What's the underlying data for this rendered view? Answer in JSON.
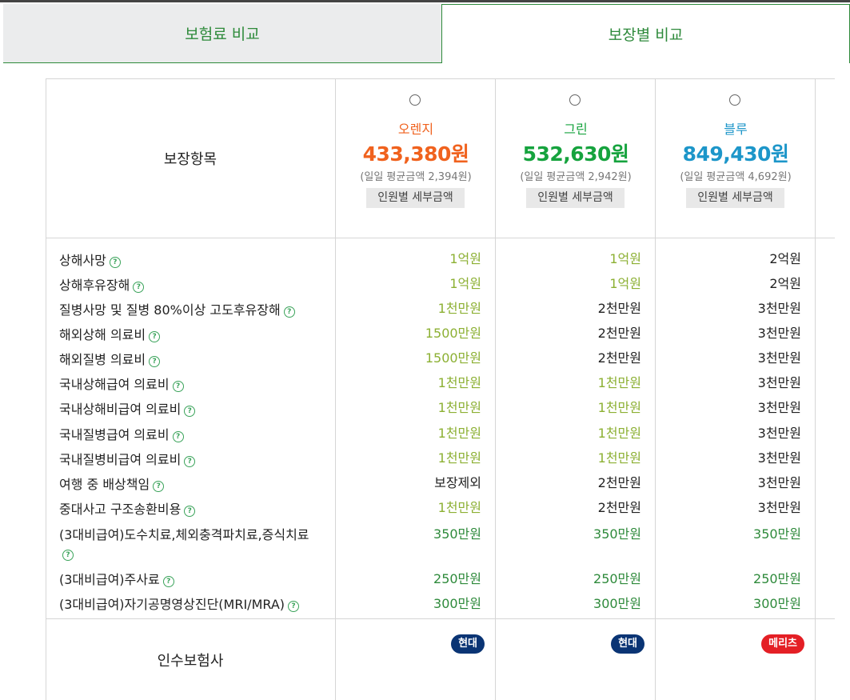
{
  "tabs": {
    "premium": "보험료 비교",
    "coverage": "보장별 비교"
  },
  "header": {
    "label": "보장항목"
  },
  "plans": [
    {
      "name": "오렌지",
      "price": "433,380원",
      "daily": "(일일 평균금액 2,394원)",
      "detail": "인원별 세부금액",
      "color": "#f0621e"
    },
    {
      "name": "그린",
      "price": "532,630원",
      "daily": "(일일 평균금액 2,942원)",
      "detail": "인원별 세부금액",
      "color": "#16a33e"
    },
    {
      "name": "블루",
      "price": "849,430원",
      "daily": "(일일 평균금액 4,692원)",
      "detail": "인원별 세부금액",
      "color": "#1d96c9"
    }
  ],
  "rows": [
    {
      "label": "상해사망",
      "values": [
        "1억원",
        "1억원",
        "2억원"
      ]
    },
    {
      "label": "상해후유장해",
      "values": [
        "1억원",
        "1억원",
        "2억원"
      ]
    },
    {
      "label": "질병사망 및 질병 80%이상 고도후유장해",
      "values": [
        "1천만원",
        "2천만원",
        "3천만원"
      ]
    },
    {
      "label": "해외상해 의료비",
      "values": [
        "1500만원",
        "2천만원",
        "3천만원"
      ]
    },
    {
      "label": "해외질병 의료비",
      "values": [
        "1500만원",
        "2천만원",
        "3천만원"
      ]
    },
    {
      "label": "국내상해급여 의료비",
      "values": [
        "1천만원",
        "1천만원",
        "3천만원"
      ]
    },
    {
      "label": "국내상해비급여 의료비",
      "values": [
        "1천만원",
        "1천만원",
        "3천만원"
      ]
    },
    {
      "label": "국내질병급여 의료비",
      "values": [
        "1천만원",
        "1천만원",
        "3천만원"
      ]
    },
    {
      "label": "국내질병비급여 의료비",
      "values": [
        "1천만원",
        "1천만원",
        "3천만원"
      ]
    },
    {
      "label": "여행 중 배상책임",
      "values": [
        "보장제외",
        "2천만원",
        "3천만원"
      ]
    },
    {
      "label": "중대사고 구조송환비용",
      "values": [
        "1천만원",
        "2천만원",
        "3천만원"
      ]
    },
    {
      "label": "(3대비급여)도수치료,체외충격파치료,증식치료",
      "values": [
        "350만원",
        "350만원",
        "350만원"
      ]
    },
    {
      "label": "(3대비급여)주사료",
      "values": [
        "250만원",
        "250만원",
        "250만원"
      ]
    },
    {
      "label": "(3대비급여)자기공명영상진단(MRI/MRA)",
      "values": [
        "300만원",
        "300만원",
        "300만원"
      ]
    }
  ],
  "insurer": {
    "label": "인수보험사",
    "badges": [
      {
        "name": "현대",
        "color": "#0a3474"
      },
      {
        "name": "현대",
        "color": "#0a3474"
      },
      {
        "name": "메리츠",
        "color": "#e41f25"
      }
    ]
  },
  "colors": {
    "accent_green": "#2e8a3b",
    "olive": "#8cb033",
    "help": "#3aa35a"
  }
}
